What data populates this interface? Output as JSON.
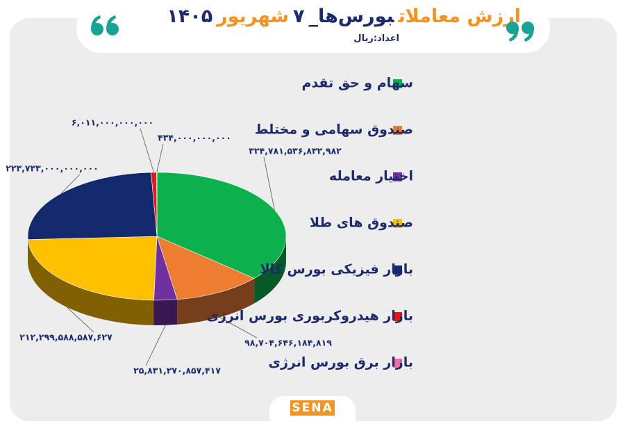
{
  "chart_data": {
    "type": "pie",
    "title": [
      "ارزش معاملات",
      "بورس‌ها_",
      "۷",
      "شهریور",
      "۱۴۰۵"
    ],
    "title_colors": [
      "#f39323",
      "#1d2a6b",
      "#1d2a6b",
      "#f39323",
      "#1d2a6b"
    ],
    "subtitle": "اعداد:ریال",
    "categories": [
      "سهام و حق تقدم",
      "صندوق سهامی و مختلط",
      "اختیار معامله",
      "صندوق های طلا",
      "بازار فیزیکی بورس کالا",
      "بازار هیدروکربوری بورس انرژی",
      "بازار برق بورس انرژی"
    ],
    "values": [
      324781536832982,
      98704646184819,
      25831270857417,
      212299588587627,
      223733000000000,
      6011000000000,
      434000000000
    ],
    "value_labels": [
      "۳۲۴,۷۸۱,۵۳۶,۸۳۲,۹۸۲",
      "۹۸,۷۰۴,۶۴۶,۱۸۴,۸۱۹",
      "۲۵,۸۳۱,۲۷۰,۸۵۷,۴۱۷",
      "۲۱۲,۲۹۹,۵۸۸,۵۸۷,۶۲۷",
      "۲۲۳,۷۳۳,۰۰۰,۰۰۰,۰۰۰",
      "۶,۰۱۱,۰۰۰,۰۰۰,۰۰۰",
      "۴۳۴,۰۰۰,۰۰۰,۰۰۰"
    ],
    "colors": [
      "#0db14b",
      "#ed7d31",
      "#7030a0",
      "#ffc000",
      "#13296b",
      "#e8151b",
      "#f06eaa"
    ]
  },
  "logo": "SENA"
}
